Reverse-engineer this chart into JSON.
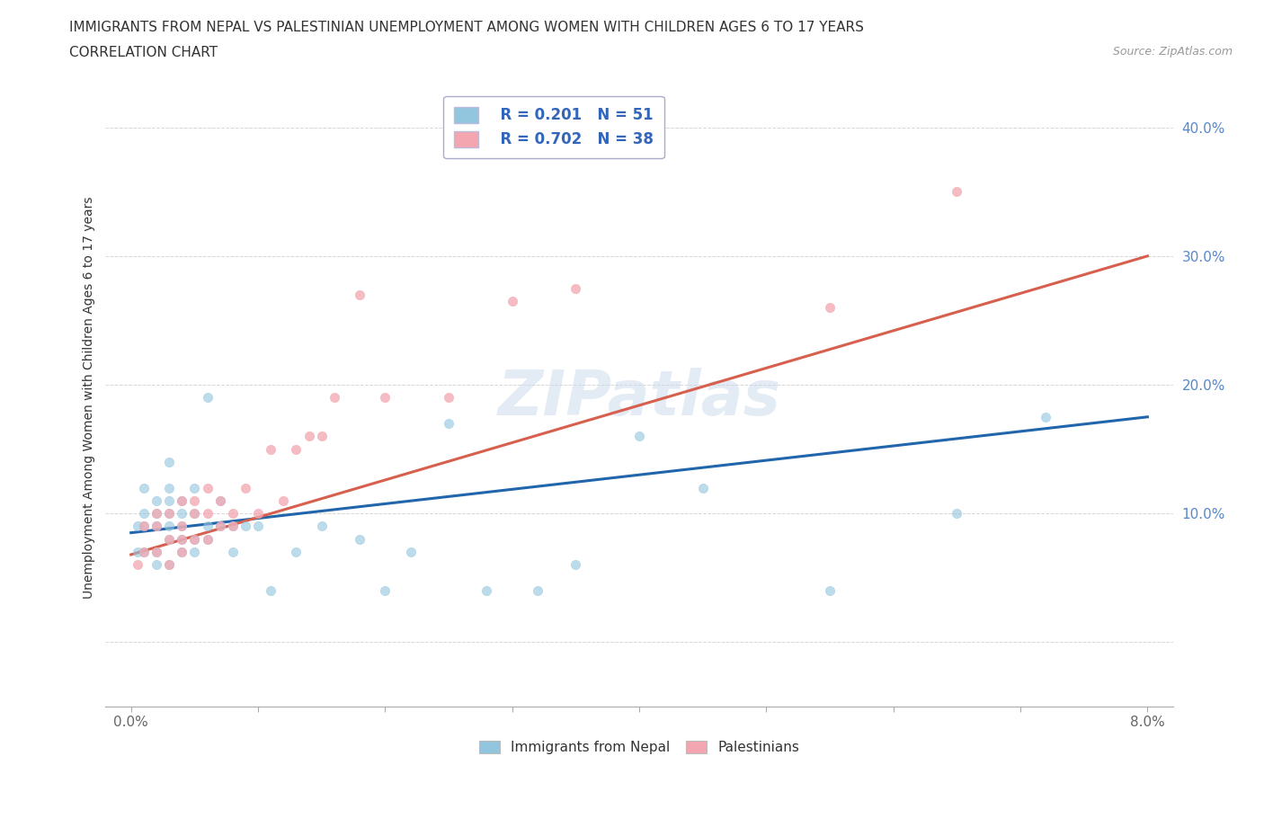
{
  "title_line1": "IMMIGRANTS FROM NEPAL VS PALESTINIAN UNEMPLOYMENT AMONG WOMEN WITH CHILDREN AGES 6 TO 17 YEARS",
  "title_line2": "CORRELATION CHART",
  "source": "Source: ZipAtlas.com",
  "ylabel_label": "Unemployment Among Women with Children Ages 6 to 17 years",
  "watermark": "ZIPatlas",
  "legend_r1": "R = 0.201",
  "legend_n1": "N = 51",
  "legend_r2": "R = 0.702",
  "legend_n2": "N = 38",
  "nepal_color": "#92c5de",
  "palestinian_color": "#f4a6b0",
  "nepal_line_color": "#2166ac",
  "palestinian_line_color": "#d6604d",
  "scatter_size": 55,
  "xlim": [
    -0.002,
    0.082
  ],
  "ylim": [
    -0.05,
    0.43
  ],
  "xticks": [
    0.0,
    0.01,
    0.02,
    0.03,
    0.04,
    0.05,
    0.06,
    0.07,
    0.08
  ],
  "xtick_labels": [
    "0.0%",
    "",
    "",
    "",
    "",
    "",
    "",
    "",
    "8.0%"
  ],
  "yticks": [
    0.0,
    0.1,
    0.2,
    0.3,
    0.4
  ],
  "ytick_labels": [
    "",
    "10.0%",
    "20.0%",
    "30.0%",
    "40.0%"
  ],
  "nepal_points_x": [
    0.0005,
    0.0005,
    0.001,
    0.001,
    0.001,
    0.001,
    0.002,
    0.002,
    0.002,
    0.002,
    0.002,
    0.003,
    0.003,
    0.003,
    0.003,
    0.003,
    0.003,
    0.003,
    0.004,
    0.004,
    0.004,
    0.004,
    0.004,
    0.005,
    0.005,
    0.005,
    0.005,
    0.006,
    0.006,
    0.006,
    0.007,
    0.007,
    0.008,
    0.008,
    0.009,
    0.01,
    0.011,
    0.013,
    0.015,
    0.018,
    0.02,
    0.022,
    0.025,
    0.028,
    0.032,
    0.035,
    0.04,
    0.045,
    0.055,
    0.065,
    0.072
  ],
  "nepal_points_y": [
    0.07,
    0.09,
    0.07,
    0.09,
    0.1,
    0.12,
    0.06,
    0.07,
    0.09,
    0.1,
    0.11,
    0.06,
    0.08,
    0.09,
    0.1,
    0.11,
    0.12,
    0.14,
    0.07,
    0.08,
    0.09,
    0.1,
    0.11,
    0.07,
    0.08,
    0.1,
    0.12,
    0.08,
    0.09,
    0.19,
    0.09,
    0.11,
    0.07,
    0.09,
    0.09,
    0.09,
    0.04,
    0.07,
    0.09,
    0.08,
    0.04,
    0.07,
    0.17,
    0.04,
    0.04,
    0.06,
    0.16,
    0.12,
    0.04,
    0.1,
    0.175
  ],
  "palestinian_points_x": [
    0.0005,
    0.001,
    0.001,
    0.002,
    0.002,
    0.002,
    0.003,
    0.003,
    0.003,
    0.004,
    0.004,
    0.004,
    0.004,
    0.005,
    0.005,
    0.005,
    0.006,
    0.006,
    0.006,
    0.007,
    0.007,
    0.008,
    0.008,
    0.009,
    0.01,
    0.011,
    0.012,
    0.013,
    0.014,
    0.015,
    0.016,
    0.018,
    0.02,
    0.025,
    0.03,
    0.035,
    0.055,
    0.065
  ],
  "palestinian_points_y": [
    0.06,
    0.07,
    0.09,
    0.07,
    0.09,
    0.1,
    0.06,
    0.08,
    0.1,
    0.07,
    0.08,
    0.09,
    0.11,
    0.08,
    0.1,
    0.11,
    0.08,
    0.1,
    0.12,
    0.09,
    0.11,
    0.09,
    0.1,
    0.12,
    0.1,
    0.15,
    0.11,
    0.15,
    0.16,
    0.16,
    0.19,
    0.27,
    0.19,
    0.19,
    0.265,
    0.275,
    0.26,
    0.35
  ],
  "nepal_trend_x": [
    0.0,
    0.08
  ],
  "nepal_trend_y": [
    0.085,
    0.175
  ],
  "palestinian_trend_x": [
    0.0,
    0.08
  ],
  "palestinian_trend_y": [
    0.068,
    0.3
  ]
}
